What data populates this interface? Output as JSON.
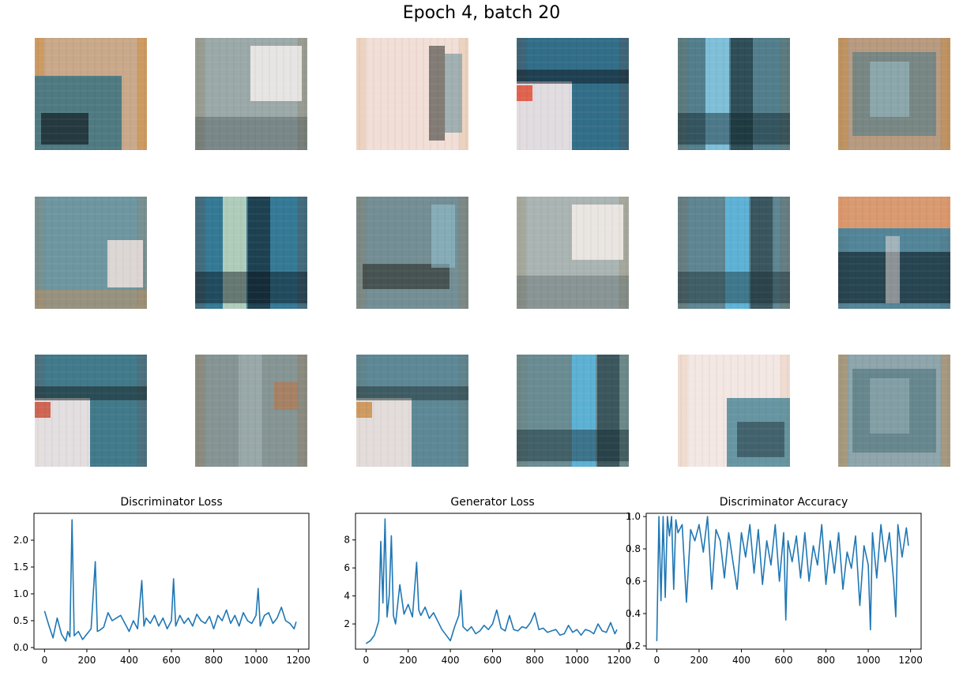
{
  "title": "Epoch 4, batch 20",
  "samples": [
    {
      "top": "#c9a98a",
      "mid": "#4f7a82",
      "dark": "#1a2a30",
      "accent": "#d3882f",
      "light": "#f1e6e6",
      "pattern": "bottom-left-dark"
    },
    {
      "top": "#e7d7c8",
      "mid": "#6a8a94",
      "dark": "#38474a",
      "accent": "#c8893c",
      "light": "#f4efee",
      "pattern": "top-right-light"
    },
    {
      "top": "#e9c9b5",
      "mid": "#7f9ca3",
      "dark": "#3a3a35",
      "accent": "#cf8a3a",
      "light": "#f6ecec",
      "pattern": "left-light"
    },
    {
      "top": "#4fb5e5",
      "mid": "#2a5d70",
      "dark": "#0e1c24",
      "accent": "#e0452a",
      "light": "#f4e8ea",
      "pattern": "bottom-left-light"
    },
    {
      "top": "#7fa3b0",
      "mid": "#3e6d7e",
      "dark": "#10242b",
      "accent": "#c48a45",
      "light": "#8fd6f2",
      "pattern": "stripes"
    },
    {
      "top": "#b89a7f",
      "mid": "#5d7f86",
      "dark": "#2d3a3c",
      "accent": "#c58a3f",
      "light": "#9ac1cc",
      "pattern": "center-box"
    },
    {
      "top": "#8fb1be",
      "mid": "#5c8792",
      "dark": "#2e3e42",
      "accent": "#c98f57",
      "light": "#f0e2de",
      "pattern": "right-light"
    },
    {
      "top": "#42b2e6",
      "mid": "#2f6172",
      "dark": "#0c141a",
      "accent": "#a34a2e",
      "light": "#d8e8c8",
      "pattern": "stripes"
    },
    {
      "top": "#9ab0b4",
      "mid": "#607d84",
      "dark": "#2a2c26",
      "accent": "#c78b45",
      "light": "#93c4d4",
      "pattern": "bottom-band"
    },
    {
      "top": "#edd6c6",
      "mid": "#7d9ea6",
      "dark": "#4b5a5c",
      "accent": "#cf8a3a",
      "light": "#f5ede9",
      "pattern": "top-right-light"
    },
    {
      "top": "#8da7ad",
      "mid": "#4a7684",
      "dark": "#1b2e34",
      "accent": "#c06a3a",
      "light": "#5ec2ee",
      "pattern": "center-stripe"
    },
    {
      "top": "#d99a70",
      "mid": "#2f7fa3",
      "dark": "#0b1a22",
      "accent": "#d9601f",
      "light": "#f2e2dc",
      "pattern": "bottom-dark"
    },
    {
      "top": "#5fa4c4",
      "mid": "#3a6f7d",
      "dark": "#17262a",
      "accent": "#c9462e",
      "light": "#f5eaea",
      "pattern": "bottom-left-light"
    },
    {
      "top": "#a4a9a0",
      "mid": "#6b858a",
      "dark": "#3a3f3a",
      "accent": "#c2713a",
      "light": "#aebcbe",
      "pattern": "right-accent"
    },
    {
      "top": "#9fb8bd",
      "mid": "#4c7c8c",
      "dark": "#25383d",
      "accent": "#c88942",
      "light": "#f2e5e1",
      "pattern": "bottom-left-light"
    },
    {
      "top": "#b0a48e",
      "mid": "#4c8294",
      "dark": "#152a32",
      "accent": "#c8803c",
      "light": "#58bde9",
      "pattern": "right-stripe"
    },
    {
      "top": "#ead7cc",
      "mid": "#4d8797",
      "dark": "#1d3039",
      "accent": "#cf7c34",
      "light": "#f7eeee",
      "pattern": "bottom-right-dark"
    },
    {
      "top": "#8da5ab",
      "mid": "#577a82",
      "dark": "#2d3b3e",
      "accent": "#c48a47",
      "light": "#9ab3b9",
      "pattern": "center-box"
    }
  ],
  "chart_data": [
    {
      "type": "line",
      "title": "Discriminator Loss",
      "xlim": [
        -50,
        1250
      ],
      "ylim": [
        -0.03,
        2.5
      ],
      "xticks": [
        0,
        200,
        400,
        600,
        800,
        1000,
        1200
      ],
      "yticks": [
        0.0,
        0.5,
        1.0,
        1.5,
        2.0
      ],
      "ytick_labels": [
        "0.0",
        "0.5",
        "1.0",
        "1.5",
        "2.0"
      ],
      "x": [
        0,
        20,
        40,
        60,
        80,
        100,
        110,
        120,
        130,
        140,
        160,
        180,
        200,
        220,
        240,
        250,
        260,
        280,
        300,
        320,
        340,
        360,
        380,
        400,
        420,
        440,
        460,
        470,
        480,
        500,
        520,
        540,
        560,
        580,
        600,
        610,
        620,
        640,
        660,
        680,
        700,
        720,
        740,
        760,
        780,
        800,
        820,
        840,
        860,
        880,
        900,
        920,
        940,
        960,
        980,
        1000,
        1010,
        1020,
        1040,
        1060,
        1080,
        1100,
        1120,
        1140,
        1160,
        1180,
        1190
      ],
      "y": [
        0.68,
        0.42,
        0.18,
        0.55,
        0.25,
        0.12,
        0.3,
        0.2,
        2.38,
        0.22,
        0.3,
        0.15,
        0.25,
        0.35,
        1.6,
        0.3,
        0.32,
        0.38,
        0.65,
        0.5,
        0.55,
        0.6,
        0.45,
        0.3,
        0.5,
        0.35,
        1.25,
        0.4,
        0.55,
        0.45,
        0.6,
        0.4,
        0.55,
        0.35,
        0.5,
        1.28,
        0.4,
        0.6,
        0.45,
        0.55,
        0.4,
        0.62,
        0.5,
        0.45,
        0.58,
        0.35,
        0.6,
        0.5,
        0.7,
        0.45,
        0.6,
        0.4,
        0.65,
        0.5,
        0.45,
        0.6,
        1.1,
        0.4,
        0.6,
        0.65,
        0.45,
        0.55,
        0.75,
        0.5,
        0.45,
        0.35,
        0.48
      ],
      "color": "#1f77b4"
    },
    {
      "type": "line",
      "title": "Generator Loss",
      "xlim": [
        -50,
        1250
      ],
      "ylim": [
        0.2,
        9.9
      ],
      "xticks": [
        0,
        200,
        400,
        600,
        800,
        1000,
        1200
      ],
      "yticks": [
        2,
        4,
        6,
        8
      ],
      "ytick_labels": [
        "2",
        "4",
        "6",
        "8"
      ],
      "x": [
        0,
        20,
        40,
        60,
        70,
        80,
        90,
        100,
        110,
        120,
        130,
        140,
        160,
        180,
        200,
        220,
        240,
        250,
        260,
        280,
        300,
        320,
        340,
        360,
        380,
        400,
        420,
        440,
        450,
        460,
        480,
        500,
        520,
        540,
        560,
        580,
        600,
        620,
        640,
        660,
        680,
        700,
        720,
        740,
        760,
        780,
        800,
        820,
        840,
        860,
        880,
        900,
        920,
        940,
        960,
        980,
        1000,
        1020,
        1040,
        1060,
        1080,
        1100,
        1120,
        1140,
        1160,
        1180,
        1190
      ],
      "y": [
        0.6,
        0.8,
        1.2,
        2.2,
        7.9,
        3.5,
        9.5,
        2.5,
        4.0,
        8.3,
        2.6,
        2.0,
        4.8,
        2.7,
        3.4,
        2.5,
        6.4,
        3.0,
        2.6,
        3.2,
        2.4,
        2.8,
        2.2,
        1.6,
        1.2,
        0.8,
        1.8,
        2.6,
        4.4,
        1.8,
        1.5,
        1.8,
        1.3,
        1.5,
        1.9,
        1.6,
        2.0,
        3.0,
        1.7,
        1.5,
        2.6,
        1.6,
        1.5,
        1.8,
        1.7,
        2.1,
        2.8,
        1.6,
        1.7,
        1.4,
        1.5,
        1.6,
        1.2,
        1.3,
        1.9,
        1.4,
        1.6,
        1.2,
        1.6,
        1.5,
        1.3,
        2.0,
        1.5,
        1.4,
        2.1,
        1.3,
        1.6
      ],
      "color": "#1f77b4"
    },
    {
      "type": "line",
      "title": "Discriminator Accuracy",
      "xlim": [
        -50,
        1250
      ],
      "ylim": [
        0.18,
        1.02
      ],
      "xticks": [
        0,
        200,
        400,
        600,
        800,
        1000,
        1200
      ],
      "yticks": [
        0.2,
        0.4,
        0.6,
        0.8,
        1.0
      ],
      "ytick_labels": [
        "0.2",
        "0.4",
        "0.6",
        "0.8",
        "1.0"
      ],
      "x": [
        0,
        10,
        20,
        30,
        40,
        50,
        60,
        70,
        80,
        90,
        100,
        120,
        140,
        160,
        180,
        200,
        220,
        240,
        260,
        280,
        300,
        320,
        340,
        360,
        380,
        400,
        420,
        440,
        460,
        480,
        500,
        520,
        540,
        560,
        580,
        600,
        610,
        620,
        640,
        660,
        680,
        700,
        720,
        740,
        760,
        780,
        800,
        820,
        840,
        860,
        880,
        900,
        920,
        940,
        960,
        980,
        1000,
        1010,
        1020,
        1040,
        1060,
        1080,
        1100,
        1120,
        1130,
        1140,
        1160,
        1180,
        1190
      ],
      "y": [
        0.23,
        1.0,
        0.48,
        1.0,
        0.5,
        1.0,
        0.88,
        1.0,
        0.55,
        0.98,
        0.9,
        0.95,
        0.47,
        0.92,
        0.85,
        0.95,
        0.78,
        1.0,
        0.55,
        0.92,
        0.85,
        0.62,
        0.9,
        0.72,
        0.55,
        0.9,
        0.75,
        0.95,
        0.65,
        0.92,
        0.58,
        0.85,
        0.7,
        0.95,
        0.6,
        0.9,
        0.36,
        0.85,
        0.72,
        0.88,
        0.62,
        0.9,
        0.6,
        0.82,
        0.7,
        0.95,
        0.58,
        0.85,
        0.65,
        0.9,
        0.55,
        0.78,
        0.68,
        0.88,
        0.45,
        0.82,
        0.7,
        0.3,
        0.9,
        0.62,
        0.95,
        0.72,
        0.9,
        0.6,
        0.38,
        0.95,
        0.75,
        0.93,
        0.82
      ],
      "color": "#1f77b4"
    }
  ]
}
